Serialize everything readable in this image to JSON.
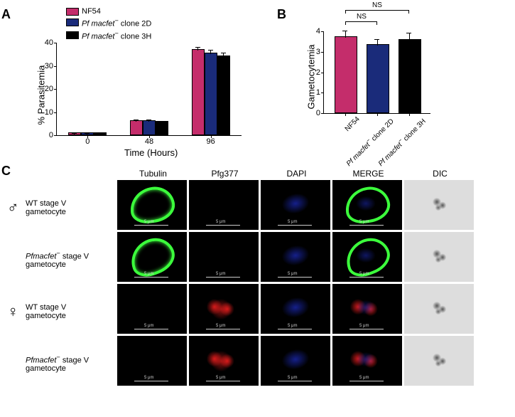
{
  "panelA": {
    "label": "A",
    "legend": [
      {
        "label": "NF54",
        "color": "#c42d6b"
      },
      {
        "label_html": "<span class='italic'>Pf macfet</span><sup>−</sup> clone 2D",
        "color": "#1a2b7a"
      },
      {
        "label_html": "<span class='italic'>Pf macfet</span><sup>−</sup> clone 3H",
        "color": "#000000"
      }
    ],
    "y_label": "% Parasitemia",
    "x_label": "Time (Hours)",
    "ylim": [
      0,
      40
    ],
    "ytick_step": 10,
    "x_categories": [
      "0",
      "48",
      "96"
    ],
    "data": {
      "0": [
        0.5,
        0.5,
        0.5
      ],
      "48": [
        6,
        6,
        5.5
      ],
      "96": [
        36.5,
        35,
        34
      ]
    },
    "errors": {
      "0": [
        0.2,
        0.2,
        0.2
      ],
      "48": [
        0.5,
        0.5,
        0.5
      ],
      "96": [
        1.5,
        1.5,
        1.5
      ]
    },
    "bar_colors": [
      "#c42d6b",
      "#1a2b7a",
      "#000000"
    ]
  },
  "panelB": {
    "label": "B",
    "y_label": "Gametocytemia",
    "ylim": [
      0,
      4
    ],
    "ytick_step": 1,
    "categories_html": [
      "NF54",
      "<span class='italic'>Pf macfet</span><sup>−</sup> clone 2D",
      "<span class='italic'>Pf macfet</span><sup>−</sup> clone 3H"
    ],
    "values": [
      3.7,
      3.3,
      3.55
    ],
    "errors": [
      0.3,
      0.3,
      0.35
    ],
    "bar_colors": [
      "#c42d6b",
      "#1a2b7a",
      "#000000"
    ],
    "ns_labels": [
      "NS",
      "NS"
    ]
  },
  "panelC": {
    "label": "C",
    "columns": [
      "Tubulin",
      "Pfg377",
      "DAPI",
      "MERGE",
      "DIC"
    ],
    "rows": [
      {
        "gender": "♂",
        "label_html": "WT stage V<br>gametocyte",
        "tubulin": true,
        "pfg377": false
      },
      {
        "gender": "",
        "label_html": "<span class='italic'>Pfmacfet</span><sup>−</sup> stage V<br>gametocyte",
        "tubulin": true,
        "pfg377": false
      },
      {
        "gender": "♀",
        "label_html": "WT stage V<br>gametocyte",
        "tubulin": false,
        "pfg377": true
      },
      {
        "gender": "",
        "label_html": "<span class='italic'>Pfmacfet</span><sup>−</sup> stage V<br>gametocyte",
        "tubulin": false,
        "pfg377": true
      }
    ],
    "colors": {
      "tubulin": "#3cff3c",
      "pfg377": "#ff2020",
      "dapi": "#2030d0"
    },
    "scale_label": "5 μm"
  }
}
